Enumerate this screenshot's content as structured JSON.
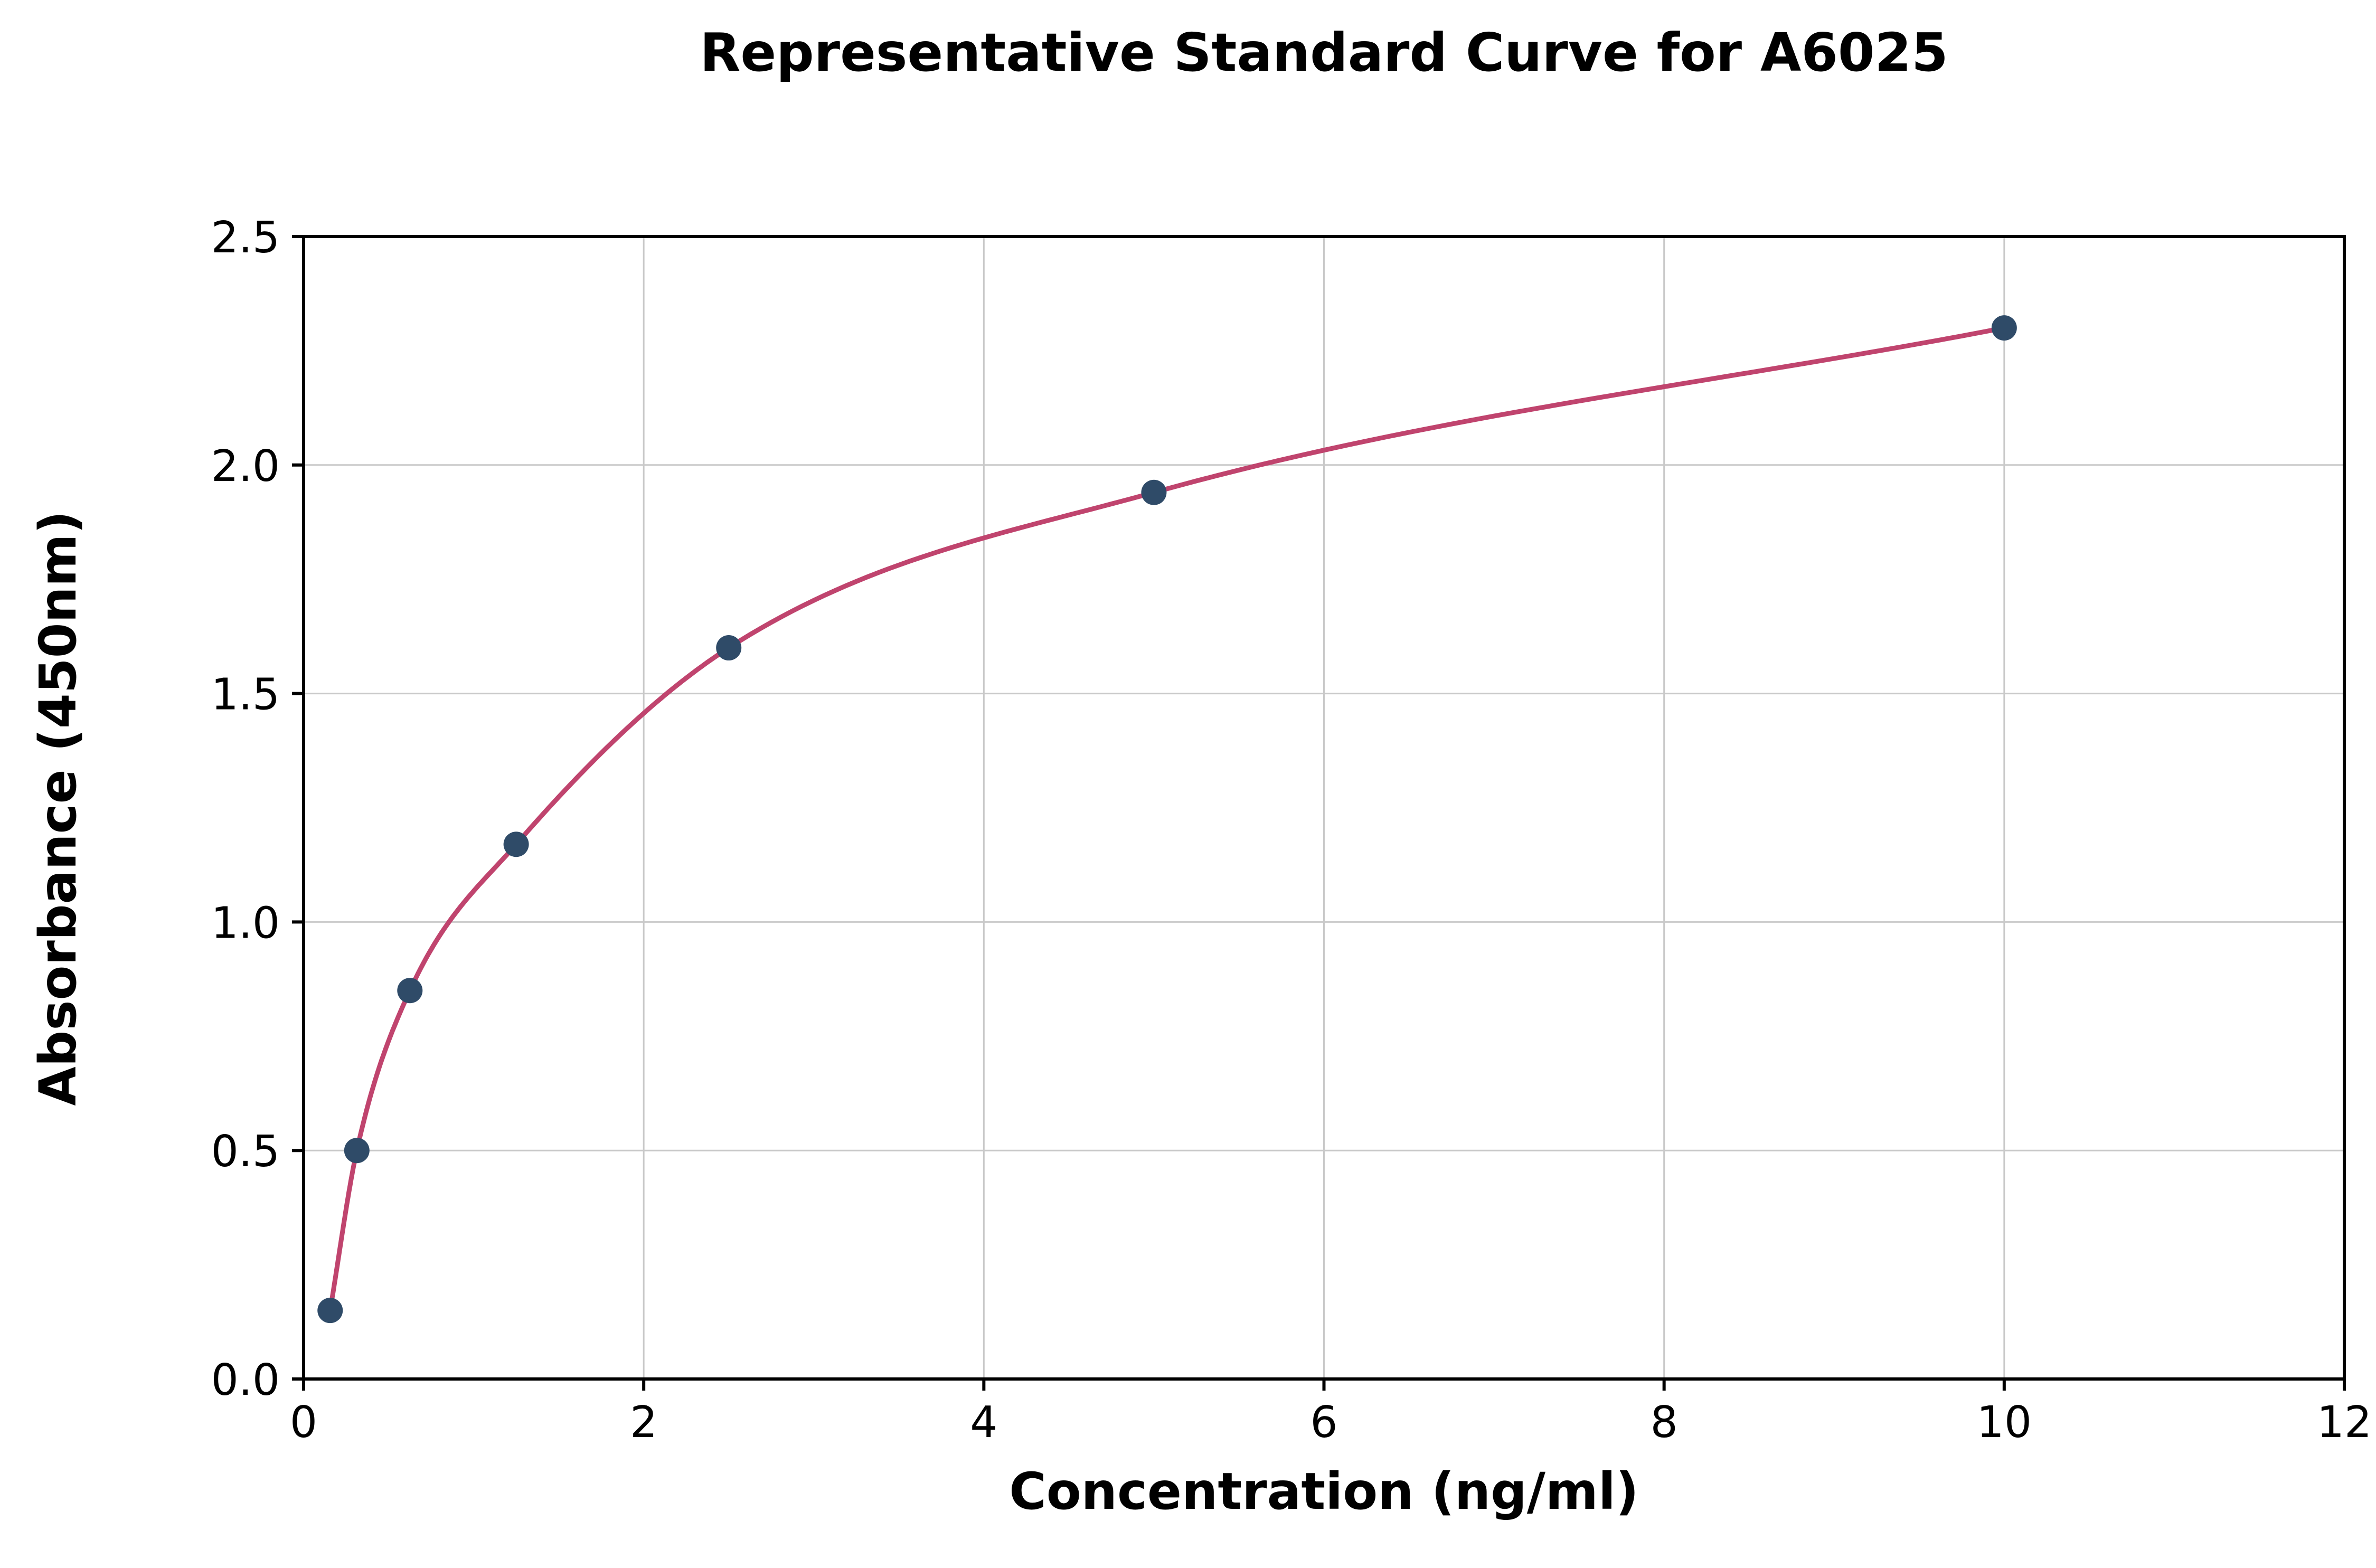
{
  "chart_data": {
    "type": "scatter",
    "title": "Representative Standard Curve for A6025",
    "xlabel": "Concentration (ng/ml)",
    "ylabel": "Absorbance (450nm)",
    "xlim": [
      0,
      12
    ],
    "ylim": [
      0,
      2.5
    ],
    "xticks": [
      0,
      2,
      4,
      6,
      8,
      10,
      12
    ],
    "xtick_labels": [
      "0",
      "2",
      "4",
      "6",
      "8",
      "10",
      "12"
    ],
    "yticks": [
      0.0,
      0.5,
      1.0,
      1.5,
      2.0,
      2.5
    ],
    "ytick_labels": [
      "0.0",
      "0.5",
      "1.0",
      "1.5",
      "2.0",
      "2.5"
    ],
    "grid": true,
    "legend_position": "none",
    "series": [
      {
        "name": "standard-curve-points",
        "x": [
          0.156,
          0.313,
          0.625,
          1.25,
          2.5,
          5,
          10
        ],
        "y": [
          0.15,
          0.5,
          0.85,
          1.17,
          1.6,
          1.94,
          2.3
        ]
      }
    ],
    "fit_curve": "smooth curve through standard points",
    "colors": {
      "curve": "#c0446e",
      "points": "#2f4b68",
      "grid": "#c9c9c9",
      "axis": "#000000",
      "background": "#ffffff"
    }
  }
}
